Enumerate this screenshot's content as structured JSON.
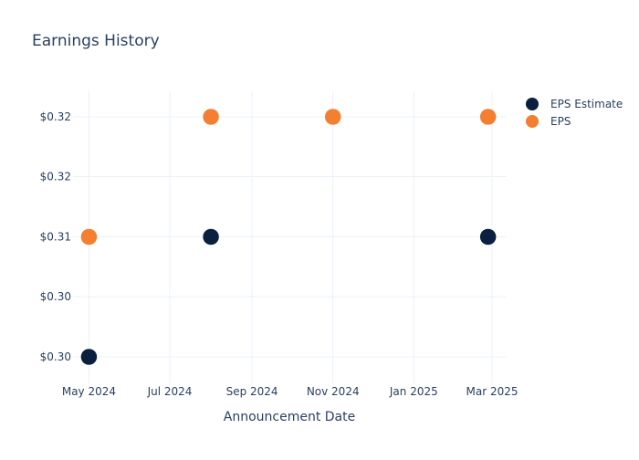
{
  "chart_data": {
    "type": "scatter",
    "title": "Earnings History",
    "xlabel": "Announcement Date",
    "ylabel": "",
    "x_ticks": [
      "May 2024",
      "Jul 2024",
      "Sep 2024",
      "Nov 2024",
      "Jan 2025",
      "Mar 2025"
    ],
    "y_ticks": [
      "$0.30",
      "$0.30",
      "$0.31",
      "$0.32",
      "$0.32"
    ],
    "grid": true,
    "legend_position": "right",
    "series": [
      {
        "name": "EPS Estimate",
        "color": "#0b1f3f",
        "points": [
          {
            "x": "2024-05-01",
            "y": 0.3
          },
          {
            "x": "2024-08-01",
            "y": 0.31
          },
          {
            "x": "2024-11-01",
            "y": 0.32
          },
          {
            "x": "2025-02-26",
            "y": 0.31
          }
        ]
      },
      {
        "name": "EPS",
        "color": "#f47f30",
        "points": [
          {
            "x": "2024-05-01",
            "y": 0.31
          },
          {
            "x": "2024-08-01",
            "y": 0.32
          },
          {
            "x": "2024-11-01",
            "y": 0.32
          },
          {
            "x": "2025-02-26",
            "y": 0.32
          }
        ]
      }
    ]
  }
}
